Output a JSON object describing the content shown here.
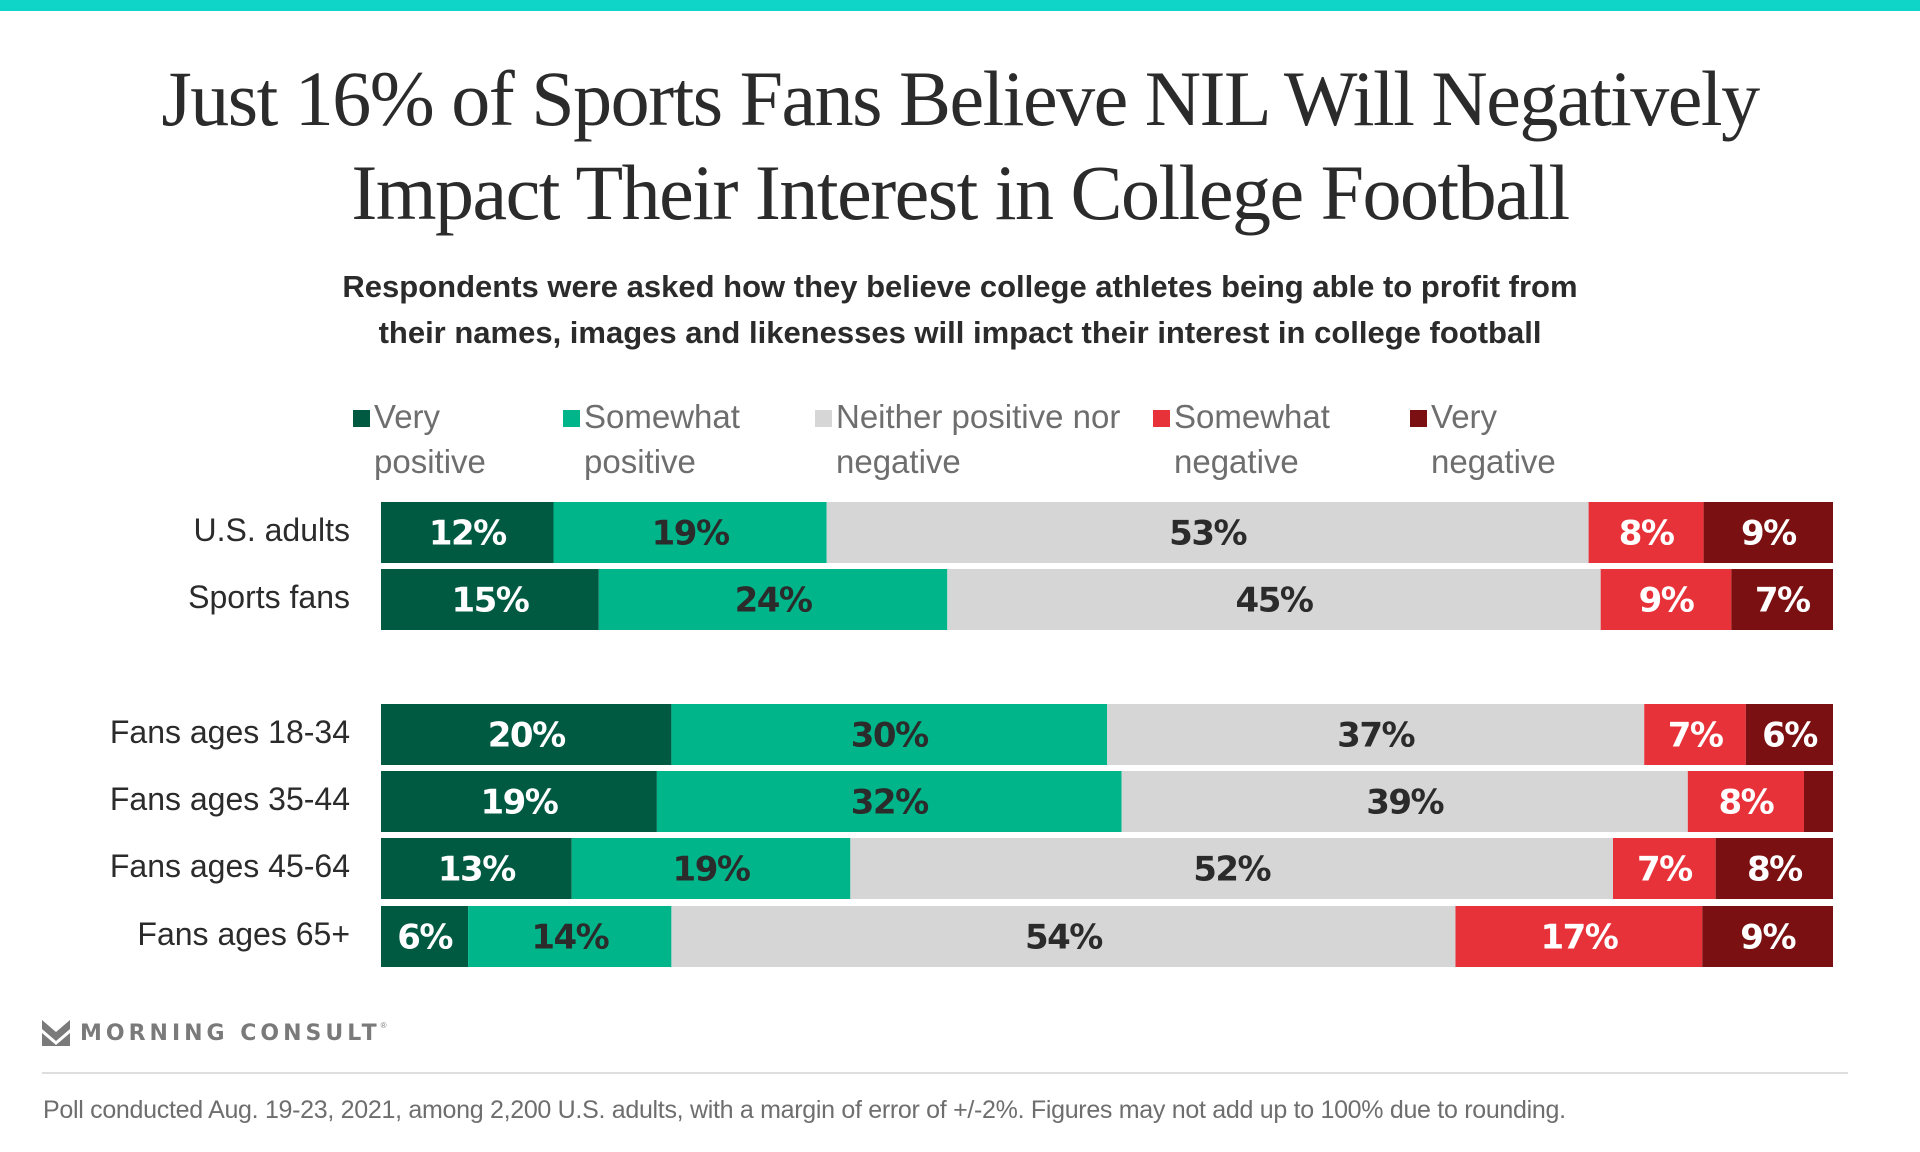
{
  "header": {
    "title_line1": "Just 16% of Sports Fans Believe NIL Will Negatively",
    "title_line2": "Impact Their Interest in College Football",
    "subtitle_line1": "Respondents were asked how they believe college athletes being able to profit from",
    "subtitle_line2": "their names, images and likenesses will impact their interest in college football"
  },
  "legend": [
    {
      "label": "Very positive",
      "color": "#005a42"
    },
    {
      "label": "Somewhat positive",
      "color": "#00b58a"
    },
    {
      "label": "Neither positive nor negative",
      "color": "#d6d6d6"
    },
    {
      "label": "Somewhat negative",
      "color": "#e8323a"
    },
    {
      "label": "Very negative",
      "color": "#7a1011"
    }
  ],
  "chart_data": {
    "type": "bar",
    "orientation": "horizontal",
    "stacked": true,
    "title": "Just 16% of Sports Fans Believe NIL Will Negatively Impact Their Interest in College Football",
    "subtitle": "Respondents were asked how they believe college athletes being able to profit from their names, images and likenesses will impact their interest in college football",
    "xlabel": "",
    "ylabel": "",
    "legend_position": "top",
    "grid": false,
    "unit": "%",
    "categories": [
      "U.S. adults",
      "Sports fans",
      "Fans ages 18-34",
      "Fans ages 35-44",
      "Fans ages 45-64",
      "Fans ages  65+"
    ],
    "groups": [
      [
        "U.S. adults",
        "Sports fans"
      ],
      [
        "Fans ages 18-34",
        "Fans ages 35-44",
        "Fans ages 45-64",
        "Fans ages  65+"
      ]
    ],
    "series": [
      {
        "name": "Very positive",
        "color": "#005a42",
        "label_color": "#ffffff",
        "values": [
          12,
          15,
          20,
          19,
          13,
          6
        ]
      },
      {
        "name": "Somewhat positive",
        "color": "#00b58a",
        "label_color": "#2b2b2b",
        "values": [
          19,
          24,
          30,
          32,
          19,
          14
        ]
      },
      {
        "name": "Neither positive nor negative",
        "color": "#d6d6d6",
        "label_color": "#2b2b2b",
        "values": [
          53,
          45,
          37,
          39,
          52,
          54
        ]
      },
      {
        "name": "Somewhat negative",
        "color": "#e8323a",
        "label_color": "#ffffff",
        "values": [
          8,
          9,
          7,
          8,
          7,
          17
        ]
      },
      {
        "name": "Very negative",
        "color": "#7a1011",
        "label_color": "#ffffff",
        "values": [
          9,
          7,
          6,
          2,
          8,
          9
        ]
      }
    ],
    "hidden_labels": [
      [
        3,
        4
      ]
    ]
  },
  "footer": {
    "brand": "MORNING CONSULT",
    "brand_mark": "®",
    "note": "Poll conducted Aug. 19-23, 2021, among 2,200 U.S. adults, with a margin of error of +/-2%. Figures may not add up to 100% due to rounding."
  }
}
